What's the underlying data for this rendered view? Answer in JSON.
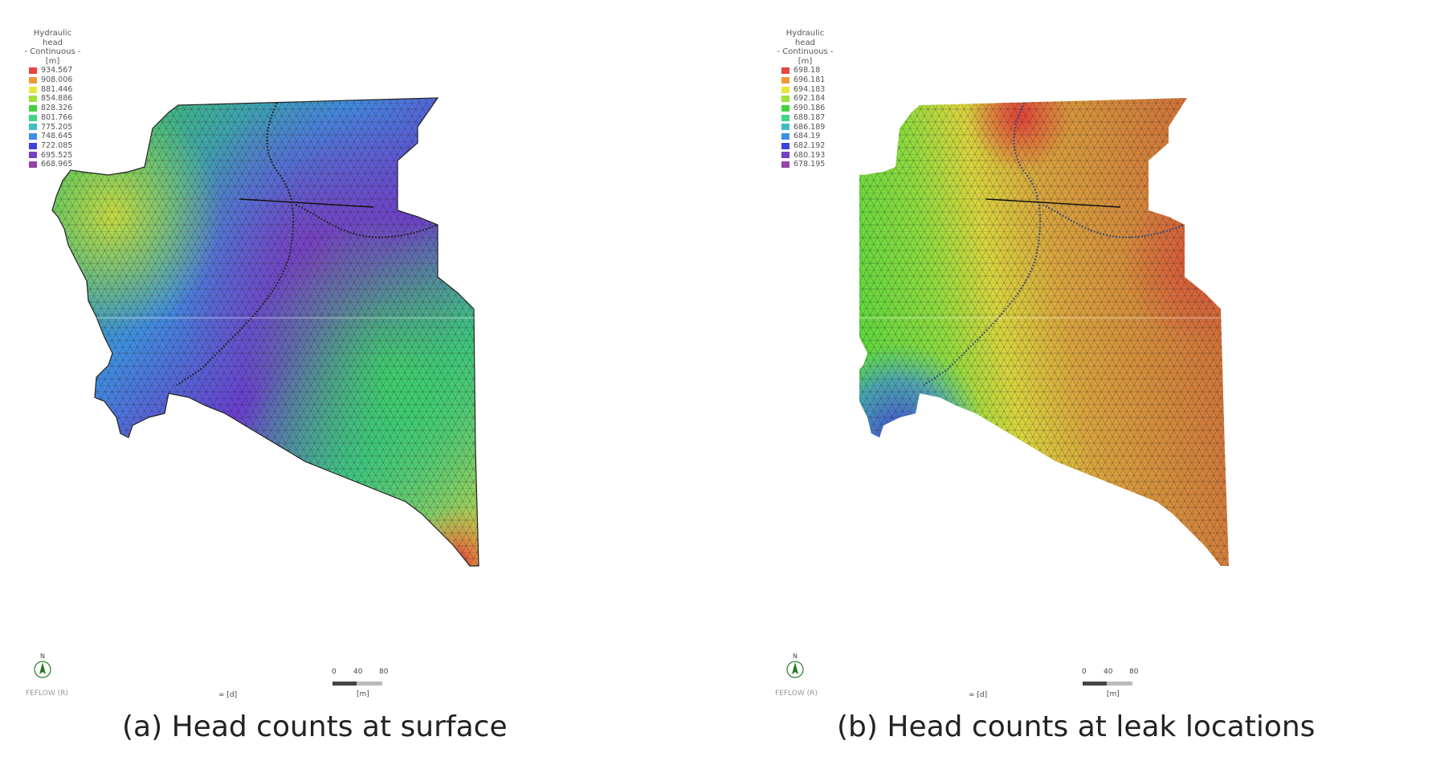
{
  "panels": [
    {
      "legend": {
        "title": "Hydraulic head",
        "subtitle": "- Continuous -",
        "unit": "[m]",
        "entries": [
          {
            "color": "#e8453c",
            "value": "934.567"
          },
          {
            "color": "#ee9a3c",
            "value": "908.006"
          },
          {
            "color": "#e7e63c",
            "value": "881.446"
          },
          {
            "color": "#9fe03c",
            "value": "854.886"
          },
          {
            "color": "#3fd43e",
            "value": "828.326"
          },
          {
            "color": "#3fd487",
            "value": "801.766"
          },
          {
            "color": "#3fbfc2",
            "value": "775.205"
          },
          {
            "color": "#3f8fe0",
            "value": "748.645"
          },
          {
            "color": "#3f40dd",
            "value": "722.085"
          },
          {
            "color": "#7540c8",
            "value": "695.525"
          },
          {
            "color": "#9444aa",
            "value": "668.965"
          }
        ]
      },
      "north_label": "N",
      "brand": "FEFLOW (R)",
      "time_label": "∞ [d]",
      "scale": {
        "ticks": [
          "0",
          "40",
          "80"
        ],
        "unit": "[m]"
      },
      "caption": "(a) Head counts at surface"
    },
    {
      "legend": {
        "title": "Hydraulic head",
        "subtitle": "- Continuous -",
        "unit": "[m]",
        "entries": [
          {
            "color": "#e8453c",
            "value": "698.18"
          },
          {
            "color": "#ee9a3c",
            "value": "696.181"
          },
          {
            "color": "#e7e63c",
            "value": "694.183"
          },
          {
            "color": "#9fe03c",
            "value": "692.184"
          },
          {
            "color": "#3fd43e",
            "value": "690.186"
          },
          {
            "color": "#3fd487",
            "value": "688.187"
          },
          {
            "color": "#3fbfc2",
            "value": "686.189"
          },
          {
            "color": "#3f8fe0",
            "value": "684.19"
          },
          {
            "color": "#3f40dd",
            "value": "682.192"
          },
          {
            "color": "#7540c8",
            "value": "680.193"
          },
          {
            "color": "#9444aa",
            "value": "678.195"
          }
        ]
      },
      "north_label": "N",
      "brand": "FEFLOW (R)",
      "time_label": "∞ [d]",
      "scale": {
        "ticks": [
          "0",
          "40",
          "80"
        ],
        "unit": "[m]"
      },
      "caption": "(b) Head counts at leak locations"
    }
  ]
}
